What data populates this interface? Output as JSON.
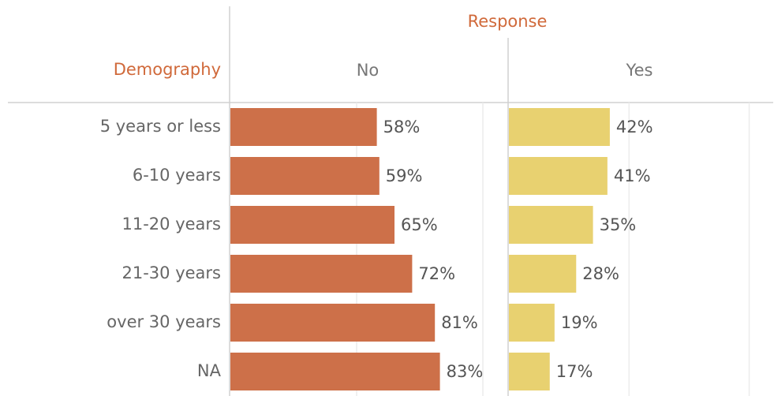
{
  "chart_data": {
    "type": "bar",
    "orientation": "horizontal",
    "title": "Response",
    "row_header": "Demography",
    "categories": [
      "5 years or less",
      "6-10 years",
      "11-20 years",
      "21-30 years",
      "over 30 years",
      "NA"
    ],
    "series": [
      {
        "name": "No",
        "color": "#cd7049",
        "values": [
          58,
          59,
          65,
          72,
          81,
          83
        ],
        "value_labels": [
          "58%",
          "59%",
          "65%",
          "72%",
          "81%",
          "83%"
        ]
      },
      {
        "name": "Yes",
        "color": "#e8d170",
        "values": [
          42,
          41,
          35,
          28,
          19,
          17
        ],
        "value_labels": [
          "42%",
          "41%",
          "35%",
          "28%",
          "19%",
          "17%"
        ]
      }
    ],
    "xlim": [
      0,
      110
    ],
    "xticks": [
      0,
      50,
      100
    ],
    "grid": true
  }
}
